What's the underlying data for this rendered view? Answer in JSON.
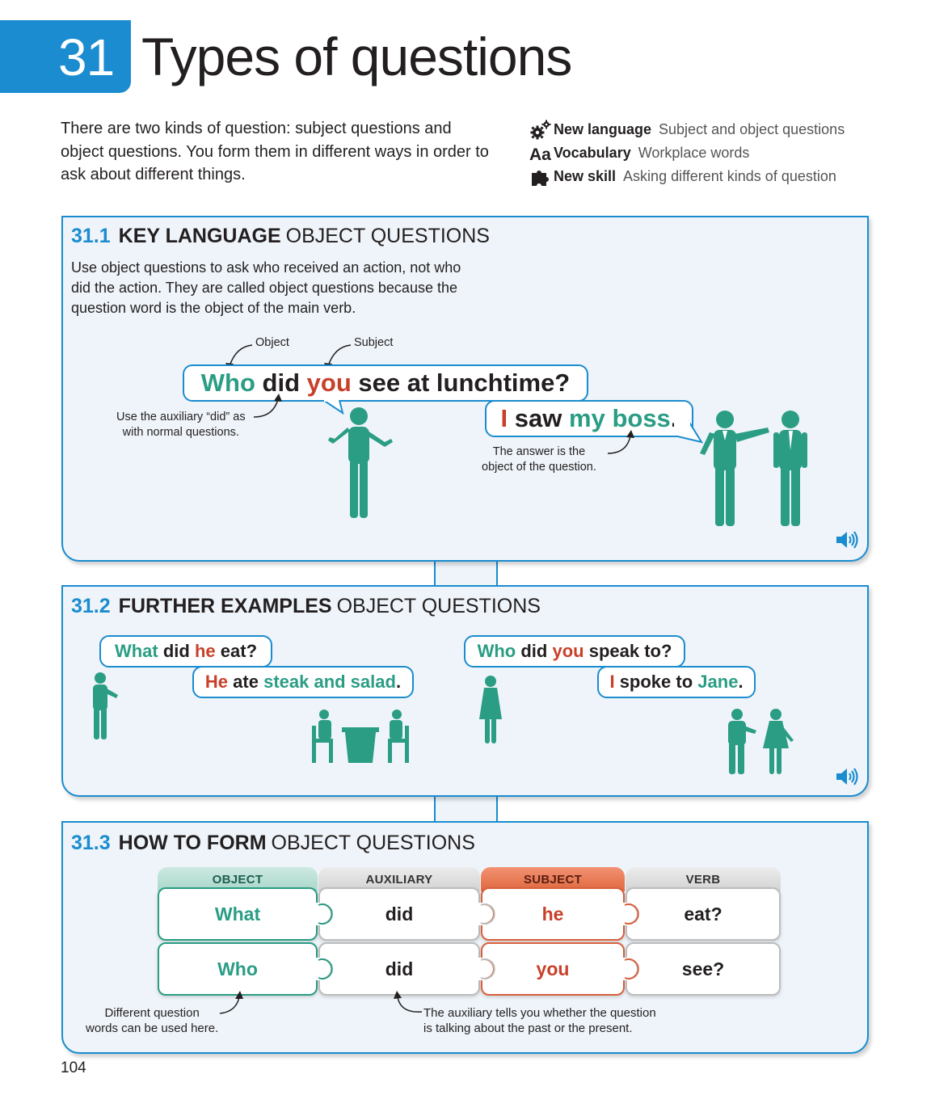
{
  "header": {
    "chapter_number": "31",
    "title": "Types of questions"
  },
  "intro": "There are two kinds of question: subject questions and object questions. You form them in different ways in order to ask about different things.",
  "meta": [
    {
      "icon": "gears-icon",
      "key": "New language",
      "value": "Subject and object questions"
    },
    {
      "icon": "aa-icon",
      "key": "Vocabulary",
      "value": "Workplace words"
    },
    {
      "icon": "puzzle-icon",
      "key": "New skill",
      "value": "Asking different kinds of question"
    }
  ],
  "colors": {
    "blue": "#1a8ccf",
    "teal": "#2a9d84",
    "red": "#c8402a",
    "panel_bg": "#eef4f9"
  },
  "section1": {
    "number": "31.1",
    "bold": "KEY LANGUAGE",
    "thin": "OBJECT QUESTIONS",
    "description": "Use object questions to ask who received an action, not who did the action. They are called object questions because the question word is the object of the main verb.",
    "label_object": "Object",
    "label_subject": "Subject",
    "question": {
      "w1": "Who",
      "w2": "did",
      "w3": "you",
      "w4": "see at lunchtime?"
    },
    "answer": {
      "w1": "I",
      "w2": "saw",
      "w3": "my boss",
      "w4": "."
    },
    "note_auxiliary": "Use the auxiliary “did” as\nwith normal questions.",
    "note_answer": "The answer is the\nobject of the question."
  },
  "section2": {
    "number": "31.2",
    "bold": "FURTHER EXAMPLES",
    "thin": "OBJECT QUESTIONS",
    "q1": {
      "w1": "What",
      "w2": "did",
      "w3": "he",
      "w4": "eat?"
    },
    "a1": {
      "w1": "He",
      "w2": "ate",
      "w3": "steak and salad",
      "w4": "."
    },
    "q2": {
      "w1": "Who",
      "w2": "did",
      "w3": "you",
      "w4": "speak to?"
    },
    "a2": {
      "w1": "I",
      "w2": "spoke to",
      "w3": "Jane",
      "w4": "."
    }
  },
  "section3": {
    "number": "31.3",
    "bold": "HOW TO FORM",
    "thin": "OBJECT QUESTIONS",
    "headers": [
      "OBJECT",
      "AUXILIARY",
      "SUBJECT",
      "VERB"
    ],
    "rows": [
      [
        "What",
        "did",
        "he",
        "eat?"
      ],
      [
        "Who",
        "did",
        "you",
        "see?"
      ]
    ],
    "note_words": "Different question\nwords can be used here.",
    "note_aux": "The auxiliary tells you whether the question\nis talking about the past or the present."
  },
  "page_number": "104"
}
